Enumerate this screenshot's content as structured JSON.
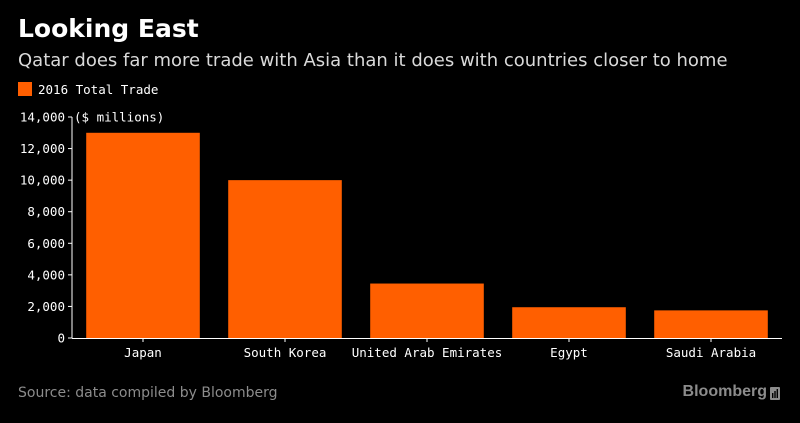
{
  "header": {
    "title": "Looking East",
    "subtitle": "Qatar does far more trade with Asia than it does with countries closer to home"
  },
  "footer": {
    "source": "Source: data compiled by Bloomberg",
    "brand": "Bloomberg"
  },
  "colors": {
    "bar": "#ff5f00",
    "background": "#000000",
    "axis": "#ffffff",
    "muted": "#8c8c8c"
  },
  "chart_data": {
    "type": "bar",
    "categories": [
      "Japan",
      "South Korea",
      "United Arab Emirates",
      "Egypt",
      "Saudi Arabia"
    ],
    "series": [
      {
        "name": "2016 Total Trade",
        "values": [
          13000,
          10000,
          3450,
          1950,
          1750
        ]
      }
    ],
    "ylabel": "($ millions)",
    "ylim": [
      0,
      14000
    ],
    "yticks": [
      "0",
      "2,000",
      "4,000",
      "6,000",
      "8,000",
      "10,000",
      "12,000",
      "14,000"
    ],
    "ytick_values": [
      0,
      2000,
      4000,
      6000,
      8000,
      10000,
      12000,
      14000
    ],
    "grid": false,
    "legend": "top-left"
  }
}
